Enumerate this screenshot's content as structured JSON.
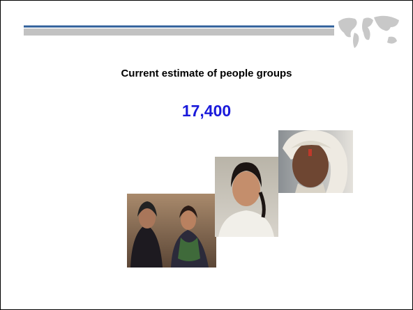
{
  "slide": {
    "title": "Current estimate of people groups",
    "figure": "17,400"
  }
}
